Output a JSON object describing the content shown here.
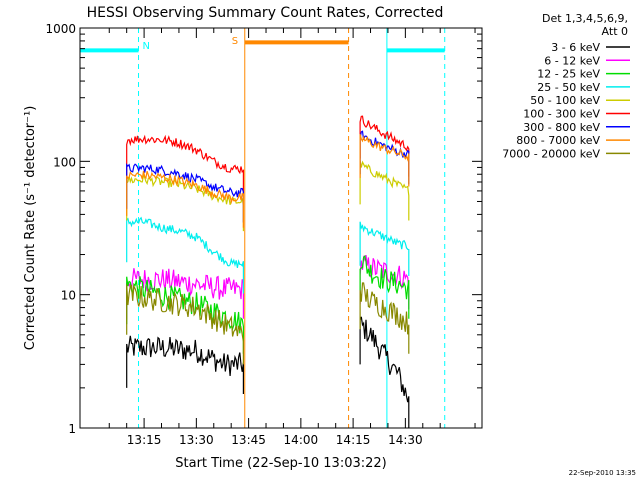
{
  "chart_data": {
    "type": "line",
    "title": "HESSI Observing Summary Count Rates, Corrected",
    "xlabel": "Start Time (22-Sep-10 13:03:22)",
    "ylabel": "Corrected Count Rate (s⁻¹ detector⁻¹)",
    "y_scale": "log",
    "ylim": [
      1,
      1000
    ],
    "xlim_min": [
      -3.4,
      112
    ],
    "x_unit": "minutes after 13:00",
    "x_ticks": [
      {
        "label": "13:15",
        "value": 15
      },
      {
        "label": "13:30",
        "value": 30
      },
      {
        "label": "13:45",
        "value": 45
      },
      {
        "label": "14:00",
        "value": 60
      },
      {
        "label": "14:15",
        "value": 75
      },
      {
        "label": "14:30",
        "value": 90
      }
    ],
    "y_ticks": [
      {
        "label": "1",
        "value": 1
      },
      {
        "label": "10",
        "value": 10
      },
      {
        "label": "100",
        "value": 100
      },
      {
        "label": "1000",
        "value": 1000
      }
    ],
    "legend": {
      "header": [
        "Det 1,3,4,5,6,9,",
        "Att 0"
      ],
      "position": "right"
    },
    "series": [
      {
        "name": "3 - 6 keV",
        "color": "#000000",
        "segments": [
          {
            "x": [
              10.0,
              20.0,
              30.0,
              38.0,
              43.5
            ],
            "y": [
              4.0,
              4.0,
              3.8,
              3.0,
              3.0
            ]
          },
          {
            "x": [
              77.0,
              80.0,
              84.0,
              88.0,
              91.0
            ],
            "y": [
              6.0,
              5.0,
              3.5,
              2.5,
              1.6
            ]
          }
        ]
      },
      {
        "name": "6 - 12 keV",
        "color": "#ff00ff",
        "segments": [
          {
            "x": [
              10.0,
              20.0,
              30.0,
              38.0,
              43.5
            ],
            "y": [
              13.0,
              13.0,
              12.0,
              11.0,
              11.0
            ]
          },
          {
            "x": [
              77.0,
              80.0,
              84.0,
              88.0,
              91.0
            ],
            "y": [
              17.0,
              16.0,
              15.0,
              14.0,
              13.0
            ]
          }
        ]
      },
      {
        "name": "12 - 25 keV",
        "color": "#00dd00",
        "segments": [
          {
            "x": [
              10.0,
              20.0,
              30.0,
              38.0,
              43.5
            ],
            "y": [
              12.0,
              10.0,
              8.5,
              7.0,
              6.0
            ]
          },
          {
            "x": [
              77.0,
              80.0,
              84.0,
              88.0,
              91.0
            ],
            "y": [
              19.0,
              15.0,
              13.0,
              12.0,
              11.0
            ]
          }
        ]
      },
      {
        "name": "25 - 50 keV",
        "color": "#00eeee",
        "segments": [
          {
            "x": [
              10.0,
              15.0,
              20.0,
              25.0,
              30.0,
              35.0,
              40.0,
              43.5
            ],
            "y": [
              35.0,
              35.0,
              32.0,
              30.0,
              27.0,
              21.0,
              17.0,
              17.0
            ]
          },
          {
            "x": [
              77.0,
              80.0,
              84.0,
              88.0,
              91.0
            ],
            "y": [
              33.0,
              30.0,
              27.0,
              24.0,
              23.0
            ]
          }
        ]
      },
      {
        "name": "50 - 100 keV",
        "color": "#cccc00",
        "segments": [
          {
            "x": [
              10.0,
              15.0,
              20.0,
              25.0,
              30.0,
              35.0,
              40.0,
              43.5
            ],
            "y": [
              72.0,
              73.0,
              70.0,
              67.0,
              62.0,
              55.0,
              50.0,
              50.0
            ]
          },
          {
            "x": [
              77.0,
              80.0,
              84.0,
              88.0,
              91.0
            ],
            "y": [
              95.0,
              85.0,
              75.0,
              66.0,
              60.0
            ]
          }
        ]
      },
      {
        "name": "100 - 300 keV",
        "color": "#ff0000",
        "segments": [
          {
            "x": [
              10.0,
              15.0,
              20.0,
              25.0,
              30.0,
              35.0,
              40.0,
              43.5
            ],
            "y": [
              145.0,
              148.0,
              145.0,
              138.0,
              122.0,
              100.0,
              88.0,
              88.0
            ]
          },
          {
            "x": [
              77.0,
              80.0,
              84.0,
              88.0,
              91.0
            ],
            "y": [
              210.0,
              185.0,
              160.0,
              140.0,
              128.0
            ]
          }
        ]
      },
      {
        "name": "300 - 800 keV",
        "color": "#0000ff",
        "segments": [
          {
            "x": [
              10.0,
              15.0,
              20.0,
              25.0,
              30.0,
              35.0,
              40.0,
              43.5
            ],
            "y": [
              88.0,
              89.0,
              86.0,
              81.0,
              73.0,
              64.0,
              58.0,
              58.0
            ]
          },
          {
            "x": [
              77.0,
              80.0,
              84.0,
              88.0,
              91.0
            ],
            "y": [
              160.0,
              145.0,
              130.0,
              118.0,
              112.0
            ]
          }
        ]
      },
      {
        "name": "800 - 7000 keV",
        "color": "#ff8800",
        "segments": [
          {
            "x": [
              10.0,
              15.0,
              20.0,
              25.0,
              30.0,
              35.0,
              40.0,
              43.5
            ],
            "y": [
              78.0,
              79.0,
              76.0,
              72.0,
              66.0,
              58.0,
              53.0,
              53.0
            ]
          },
          {
            "x": [
              77.0,
              80.0,
              84.0,
              88.0,
              91.0
            ],
            "y": [
              150.0,
              138.0,
              125.0,
              115.0,
              108.0
            ]
          }
        ]
      },
      {
        "name": "7000 - 20000 keV",
        "color": "#888800",
        "segments": [
          {
            "x": [
              10.0,
              20.0,
              30.0,
              38.0,
              43.5
            ],
            "y": [
              10.0,
              9.0,
              8.0,
              6.0,
              5.0
            ]
          },
          {
            "x": [
              77.0,
              80.0,
              84.0,
              88.0,
              91.0
            ],
            "y": [
              11.0,
              9.0,
              8.0,
              7.0,
              6.0
            ]
          }
        ]
      }
    ],
    "annotations": {
      "night_marker": {
        "label": "N",
        "color": "#00ffff"
      },
      "saa_marker": {
        "label": "S",
        "color": "#ff8800"
      },
      "vertical_lines": [
        {
          "x": -3.4,
          "color": "#00ffff",
          "style": "solid"
        },
        {
          "x": 13.4,
          "color": "#00ffff",
          "style": "dashed"
        },
        {
          "x": 43.9,
          "color": "#ff8800",
          "style": "solid"
        },
        {
          "x": 73.7,
          "color": "#ff8800",
          "style": "dashed"
        },
        {
          "x": 84.7,
          "color": "#00ffff",
          "style": "solid"
        },
        {
          "x": 101.3,
          "color": "#00ffff",
          "style": "dashed"
        }
      ],
      "bars": [
        {
          "x_start": -3.4,
          "x_end": 13.4,
          "y": 680,
          "color": "#00ffff"
        },
        {
          "x_start": 43.9,
          "x_end": 73.7,
          "y": 780,
          "color": "#ff8800"
        },
        {
          "x_start": 84.7,
          "x_end": 101.3,
          "y": 680,
          "color": "#00ffff"
        }
      ]
    }
  },
  "timestamp": "22-Sep-2010 13:35"
}
